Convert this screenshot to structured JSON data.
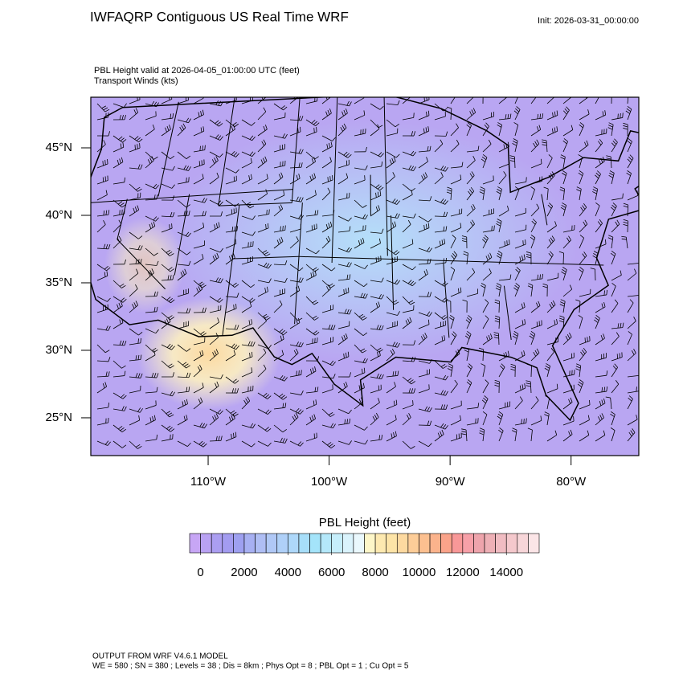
{
  "header": {
    "title": "IWFAQRP Contiguous US Real Time WRF",
    "init": "Init: 2026-03-31_00:00:00",
    "field_line": "PBL Height valid at 2026-04-05_01:00:00 UTC   (feet)",
    "vector_line": "Transport Winds   (kts)"
  },
  "map": {
    "latlim": [
      22.2,
      48.75
    ],
    "lonlim": [
      -119.7,
      -74.4
    ],
    "latticks": [
      {
        "value": 45,
        "label": "45°N"
      },
      {
        "value": 40,
        "label": "40°N"
      },
      {
        "value": 35,
        "label": "35°N"
      },
      {
        "value": 30,
        "label": "30°N"
      },
      {
        "value": 25,
        "label": "25°N"
      }
    ],
    "lonticks": [
      {
        "value": -110,
        "label": "110°W"
      },
      {
        "value": -100,
        "label": "100°W"
      },
      {
        "value": -90,
        "label": "90°W"
      },
      {
        "value": -80,
        "label": "80°W"
      }
    ]
  },
  "colorbar": {
    "title": "PBL Height  (feet)",
    "lim": [
      -500,
      15500
    ],
    "ticks": [
      0,
      2000,
      4000,
      6000,
      8000,
      10000,
      12000,
      14000
    ],
    "colors": [
      "#c7a6f5",
      "#b9a2f3",
      "#ab9ef1",
      "#a39cf0",
      "#9ea0f0",
      "#a7b0f2",
      "#afbef4",
      "#b0c8f6",
      "#afd0f8",
      "#aed8fa",
      "#a7def9",
      "#a4e4fa",
      "#b4e8fa",
      "#c6eefb",
      "#daf3fc",
      "#eaf8fd",
      "#fdf6c8",
      "#fde9b0",
      "#fde4a7",
      "#fdd9a0",
      "#fdcd98",
      "#fcc090",
      "#fbb38c",
      "#faa38a",
      "#f89898",
      "#f7a0a8",
      "#eea4ac",
      "#eeb0b6",
      "#f0bcc2",
      "#f4c8cc",
      "#f7d6d9",
      "#fbe5e7"
    ]
  },
  "footer": {
    "line1": "OUTPUT FROM WRF V4.6.1 MODEL",
    "line2": "WE = 580 ; SN = 380 ; Levels = 38 ; Dis = 8km ; Phys Opt = 8 ; PBL Opt = 1 ; Cu Opt = 5"
  }
}
